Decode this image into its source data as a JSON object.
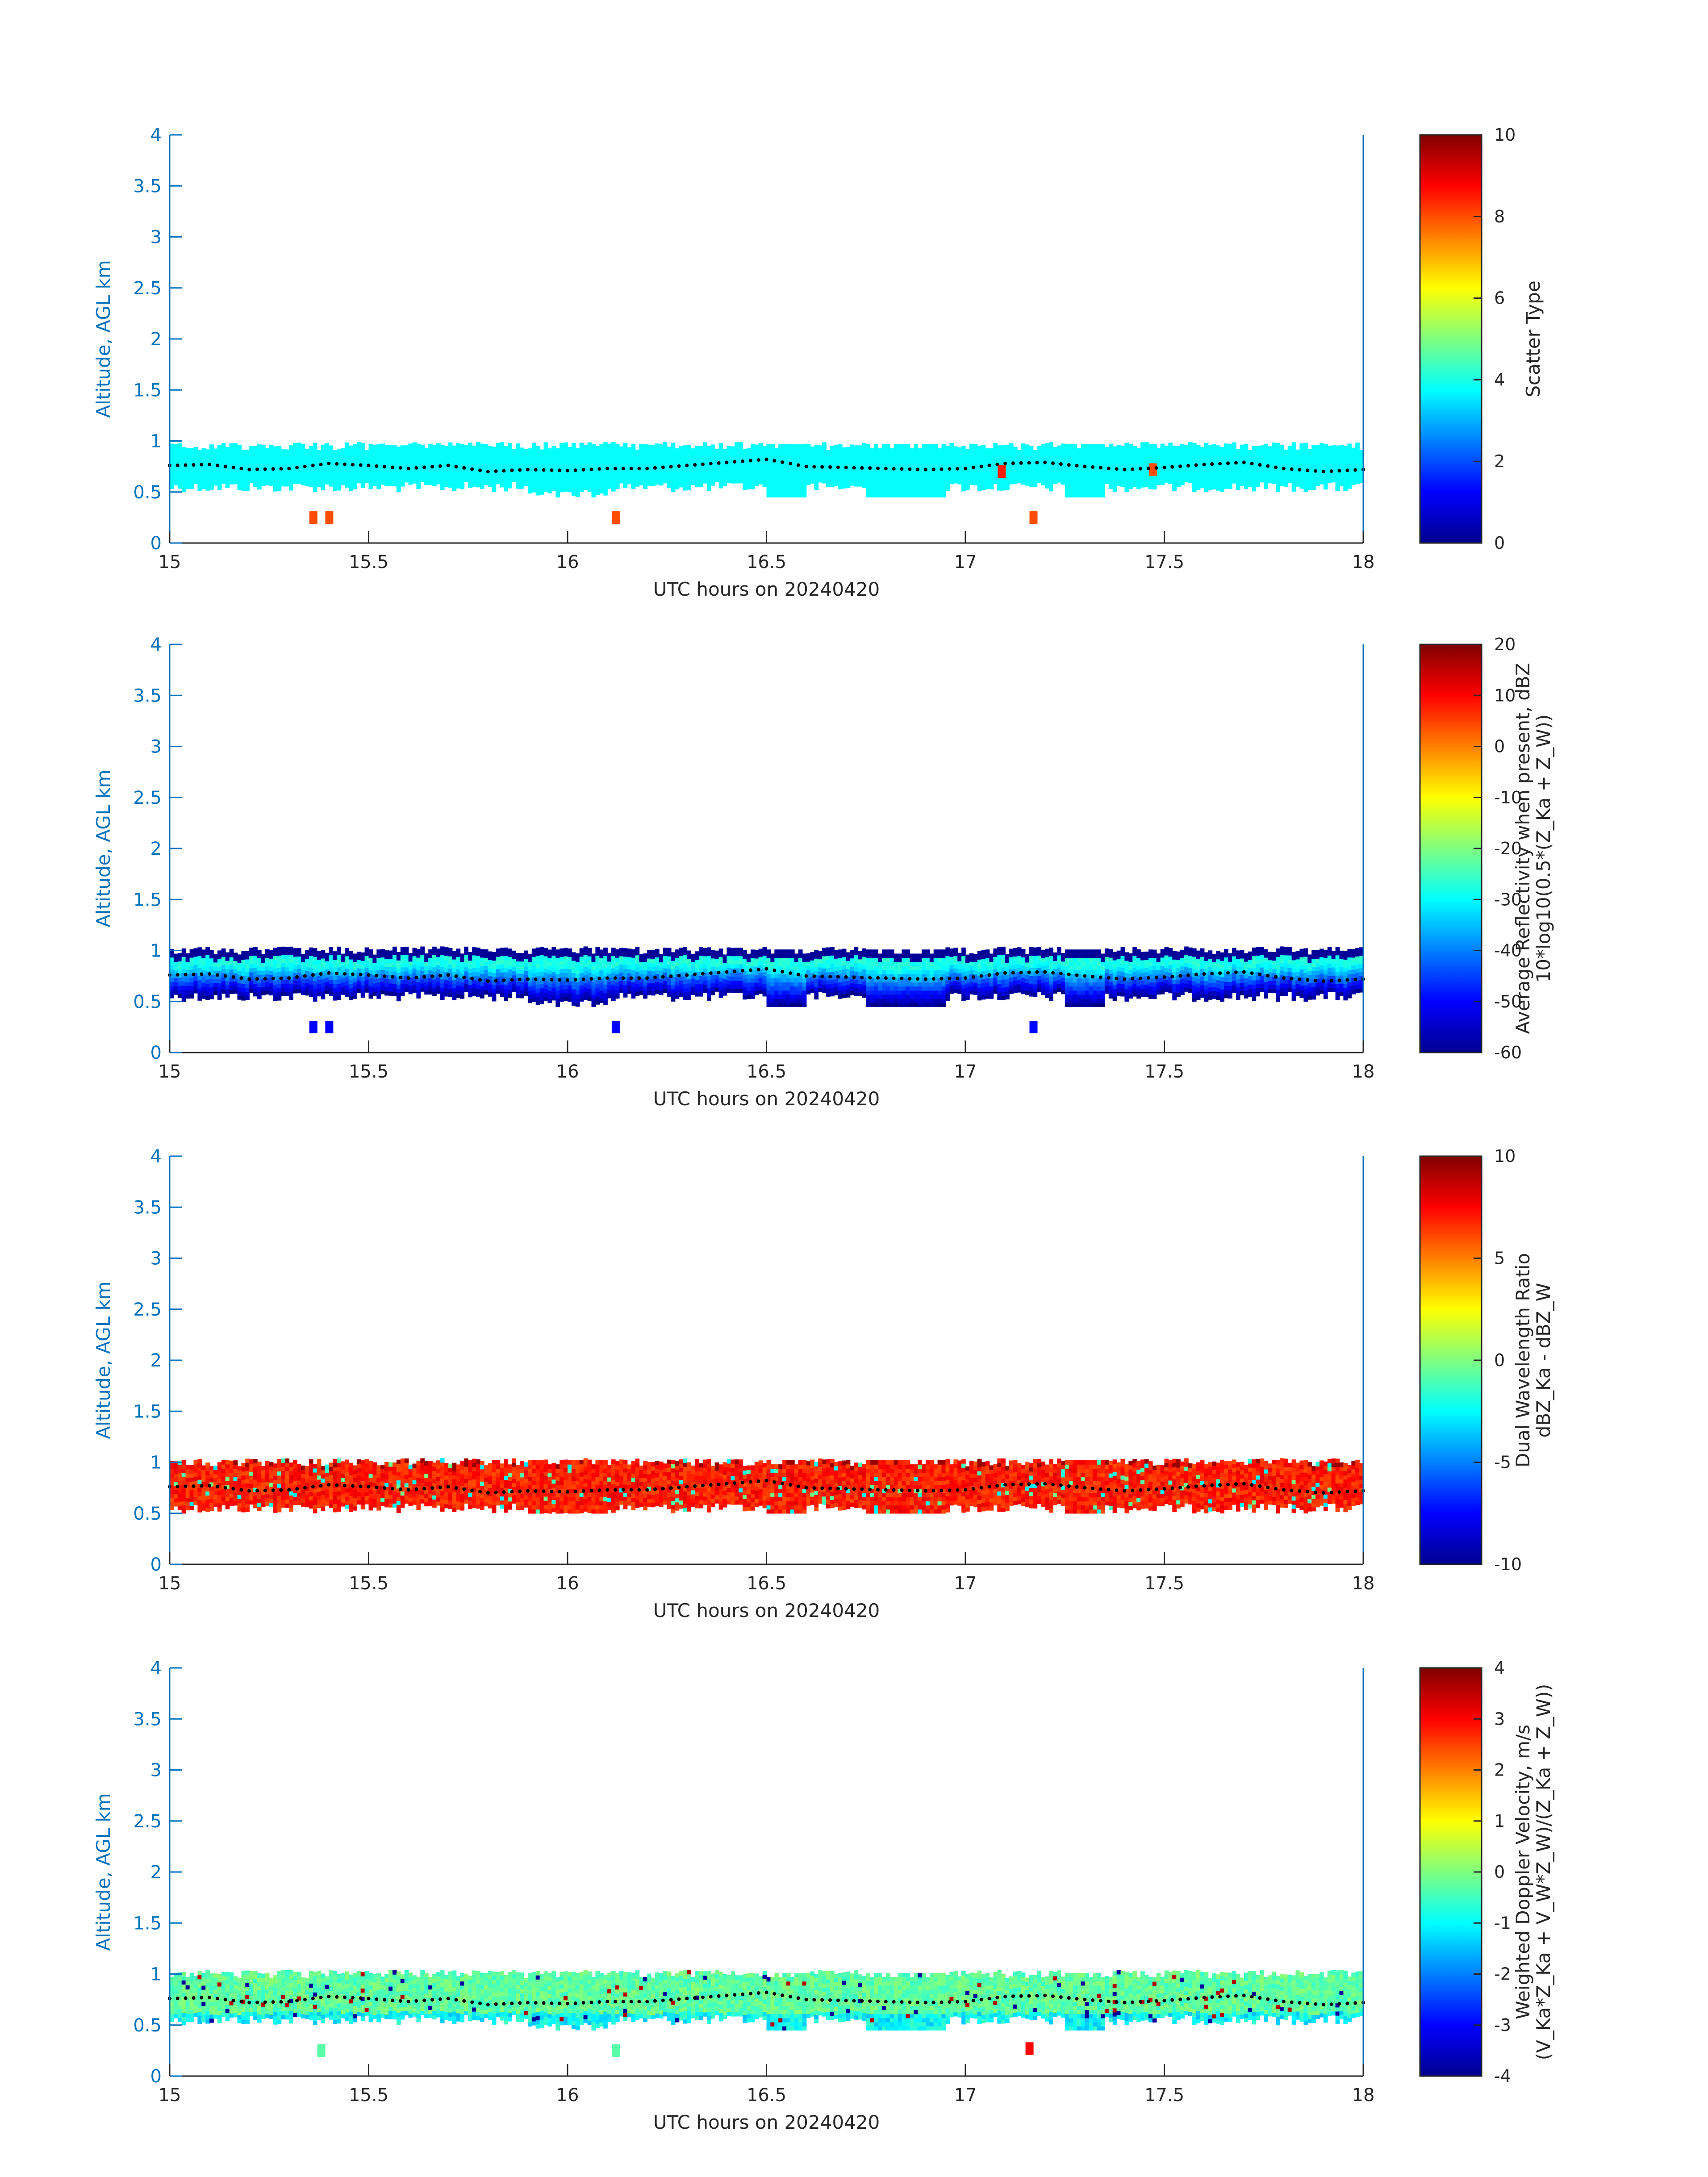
{
  "figure": {
    "colors": {
      "axis_blue": "#0072BD",
      "text_dark": "#262626",
      "trace_dots": "#000000"
    }
  },
  "chart_data": [
    {
      "type": "heatmap",
      "xlabel": "UTC hours on 20240420",
      "ylabel": "Altitude, AGL km",
      "xlim": [
        15,
        18
      ],
      "ylim": [
        0,
        4
      ],
      "x_ticks": [
        "15",
        "15.5",
        "16",
        "16.5",
        "17",
        "17.5",
        "18"
      ],
      "y_ticks": [
        "0",
        "0.5",
        "1",
        "1.5",
        "2",
        "2.5",
        "3",
        "3.5",
        "4"
      ],
      "colorbar": {
        "label_lines": [
          "Scatter Type"
        ],
        "clim": [
          0,
          10
        ],
        "ticks": [
          "0",
          "2",
          "4",
          "6",
          "8",
          "10"
        ],
        "colormap": "jet"
      },
      "field": "scatter_type",
      "cloud_layer_km": [
        0.5,
        0.95
      ],
      "dominant_value": 3.8,
      "isolated_points": [
        {
          "x": 15.36,
          "y": 0.25,
          "value": 8
        },
        {
          "x": 15.4,
          "y": 0.25,
          "value": 8
        },
        {
          "x": 16.12,
          "y": 0.25,
          "value": 8
        },
        {
          "x": 17.17,
          "y": 0.25,
          "value": 8
        },
        {
          "x": 17.09,
          "y": 0.7,
          "value": 8.5
        },
        {
          "x": 17.47,
          "y": 0.72,
          "value": 8
        }
      ]
    },
    {
      "type": "heatmap",
      "xlabel": "UTC hours on 20240420",
      "ylabel": "Altitude, AGL km",
      "xlim": [
        15,
        18
      ],
      "ylim": [
        0,
        4
      ],
      "x_ticks": [
        "15",
        "15.5",
        "16",
        "16.5",
        "17",
        "17.5",
        "18"
      ],
      "y_ticks": [
        "0",
        "0.5",
        "1",
        "1.5",
        "2",
        "2.5",
        "3",
        "3.5",
        "4"
      ],
      "colorbar": {
        "label_lines": [
          "Average Reflectivity when present, dBZ",
          "10*log10(0.5*(Z_Ka + Z_W))"
        ],
        "clim": [
          -60,
          20
        ],
        "ticks": [
          "-60",
          "-50",
          "-40",
          "-30",
          "-20",
          "-10",
          "0",
          "10",
          "20"
        ],
        "colormap": "jet"
      },
      "field": "avg_reflectivity_dbz",
      "cloud_layer_km": [
        0.5,
        1.0
      ],
      "value_range_in_cloud": [
        -60,
        -28
      ],
      "isolated_points": [
        {
          "x": 15.36,
          "y": 0.25,
          "value": -50
        },
        {
          "x": 15.4,
          "y": 0.25,
          "value": -50
        },
        {
          "x": 16.12,
          "y": 0.25,
          "value": -50
        },
        {
          "x": 17.17,
          "y": 0.25,
          "value": -50
        }
      ]
    },
    {
      "type": "heatmap",
      "xlabel": "UTC hours on 20240420",
      "ylabel": "Altitude, AGL km",
      "xlim": [
        15,
        18
      ],
      "ylim": [
        0,
        4
      ],
      "x_ticks": [
        "15",
        "15.5",
        "16",
        "16.5",
        "17",
        "17.5",
        "18"
      ],
      "y_ticks": [
        "0",
        "0.5",
        "1",
        "1.5",
        "2",
        "2.5",
        "3",
        "3.5",
        "4"
      ],
      "colorbar": {
        "label_lines": [
          "Dual Wavelength Ratio",
          "dBZ_Ka - dBZ_W"
        ],
        "clim": [
          -10,
          10
        ],
        "ticks": [
          "-10",
          "-5",
          "0",
          "5",
          "10"
        ],
        "colormap": "jet"
      },
      "field": "dual_wavelength_ratio_db",
      "cloud_layer_km": [
        0.55,
        1.0
      ],
      "value_range_in_cloud": [
        -4,
        10
      ]
    },
    {
      "type": "heatmap",
      "xlabel": "UTC hours on 20240420",
      "ylabel": "Altitude, AGL km",
      "xlim": [
        15,
        18
      ],
      "ylim": [
        0,
        4
      ],
      "x_ticks": [
        "15",
        "15.5",
        "16",
        "16.5",
        "17",
        "17.5",
        "18"
      ],
      "y_ticks": [
        "0",
        "0.5",
        "1",
        "1.5",
        "2",
        "2.5",
        "3",
        "3.5",
        "4"
      ],
      "colorbar": {
        "label_lines": [
          "Weighted Doppler Velocity, m/s",
          "(V_Ka*Z_Ka + V_W*Z_W)/(Z_Ka + Z_W))"
        ],
        "clim": [
          -4,
          4
        ],
        "ticks": [
          "-4",
          "-3",
          "-2",
          "-1",
          "0",
          "1",
          "2",
          "3",
          "4"
        ],
        "colormap": "jet"
      },
      "field": "weighted_doppler_velocity_ms",
      "cloud_layer_km": [
        0.5,
        1.0
      ],
      "value_range_in_cloud": [
        -4,
        4
      ],
      "isolated_points": [
        {
          "x": 15.38,
          "y": 0.25,
          "value": -0.3
        },
        {
          "x": 16.12,
          "y": 0.25,
          "value": -0.3
        },
        {
          "x": 17.16,
          "y": 0.27,
          "value": 3
        }
      ]
    }
  ],
  "cloud_top_trace": {
    "x": [
      15.0,
      15.1,
      15.2,
      15.3,
      15.4,
      15.5,
      15.6,
      15.7,
      15.8,
      15.9,
      16.0,
      16.1,
      16.2,
      16.3,
      16.4,
      16.5,
      16.6,
      16.7,
      16.8,
      16.9,
      17.0,
      17.1,
      17.2,
      17.3,
      17.4,
      17.5,
      17.6,
      17.7,
      17.8,
      17.9,
      18.0
    ],
    "y": [
      0.76,
      0.77,
      0.72,
      0.73,
      0.78,
      0.76,
      0.73,
      0.76,
      0.7,
      0.72,
      0.71,
      0.73,
      0.73,
      0.76,
      0.79,
      0.82,
      0.75,
      0.74,
      0.73,
      0.72,
      0.73,
      0.78,
      0.79,
      0.75,
      0.72,
      0.74,
      0.77,
      0.79,
      0.73,
      0.7,
      0.72
    ]
  }
}
